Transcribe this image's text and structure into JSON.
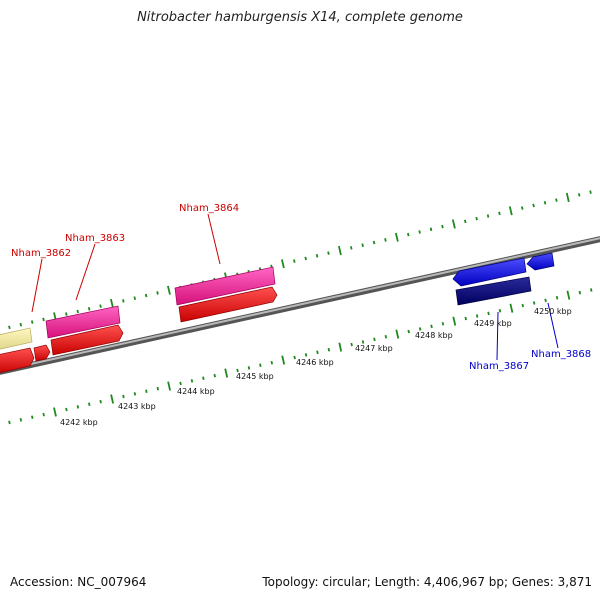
{
  "title": "Nitrobacter hamburgensis X14, complete genome",
  "footer": {
    "accession": "Accession: NC_007964",
    "summary": "Topology: circular; Length: 4,406,967 bp; Genes: 3,871"
  },
  "colors": {
    "backbone": "#8a8a8a",
    "ticks": "#1e8a1e",
    "red_label": "#cc0000",
    "blue_label": "#0000cc"
  },
  "scale_labels": [
    "4242 kbp",
    "4243 kbp",
    "4244 kbp",
    "4245 kbp",
    "4246 kbp",
    "4247 kbp",
    "4248 kbp",
    "4249 kbp",
    "4250 kbp"
  ],
  "gene_labels": [
    {
      "id": "nham3862",
      "text": "Nham_3862",
      "color": "#cc0000"
    },
    {
      "id": "nham3863",
      "text": "Nham_3863",
      "color": "#cc0000"
    },
    {
      "id": "nham3864",
      "text": "Nham_3864",
      "color": "#cc0000"
    },
    {
      "id": "nham3867",
      "text": "Nham_3867",
      "color": "#0000cc"
    },
    {
      "id": "nham3868",
      "text": "Nham_3868",
      "color": "#0000cc"
    }
  ]
}
